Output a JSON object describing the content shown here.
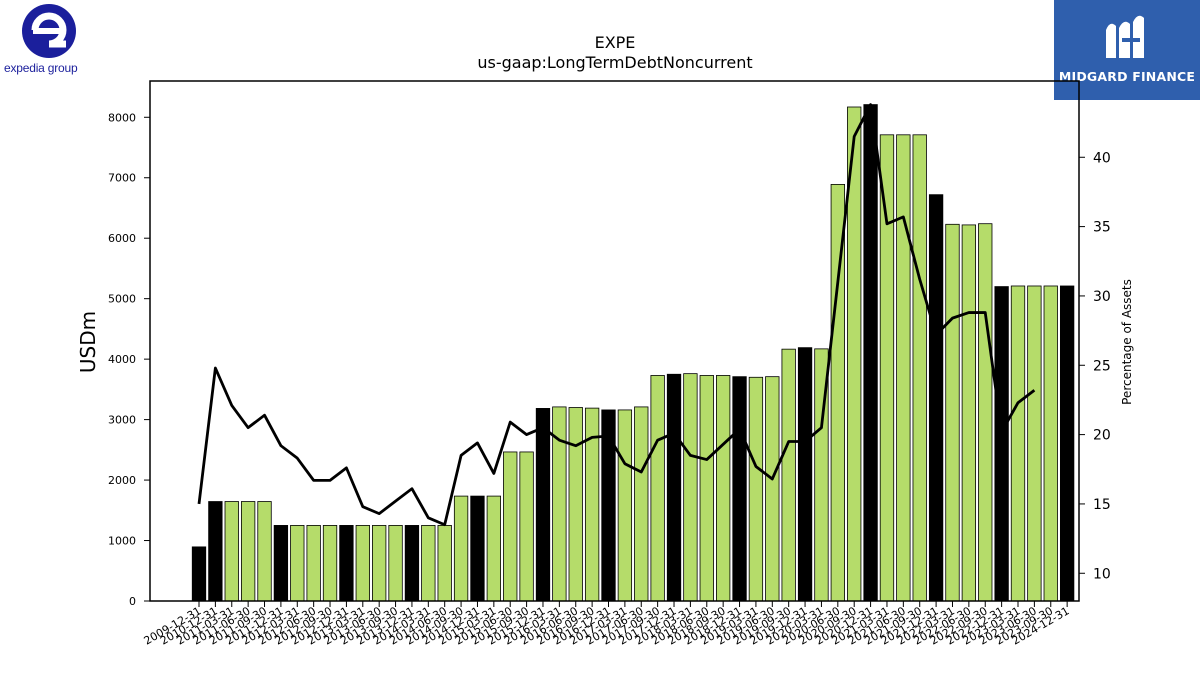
{
  "logos": {
    "left_text": "expedia group",
    "right_text": "MIDGARD FINANCE",
    "left_color": "#1b1f9c",
    "right_bg": "#2f5fad"
  },
  "chart_data": {
    "type": "bar",
    "title": "EXPE",
    "subtitle": "us-gaap:LongTermDebtNoncurrent",
    "ylabel": "USDm",
    "y2label": "Percentage of Assets",
    "ylim": [
      0,
      8600
    ],
    "y2lim": [
      8,
      45.5
    ],
    "yticks": [
      0,
      1000,
      2000,
      3000,
      4000,
      5000,
      6000,
      7000,
      8000
    ],
    "y2ticks": [
      10,
      15,
      20,
      25,
      30,
      35,
      40
    ],
    "colors": {
      "annual": "#000000",
      "quarterly": "#b5dc6a",
      "line": "#000000"
    },
    "categories": [
      "2009-12-31",
      "2010-12-31",
      "2011-03-31",
      "2011-06-30",
      "2011-09-30",
      "2011-12-31",
      "2012-03-31",
      "2012-06-30",
      "2012-09-30",
      "2012-12-31",
      "2013-03-31",
      "2013-06-30",
      "2013-09-30",
      "2013-12-31",
      "2014-03-31",
      "2014-06-30",
      "2014-09-30",
      "2014-12-31",
      "2015-03-31",
      "2015-06-30",
      "2015-09-30",
      "2015-12-31",
      "2016-03-31",
      "2016-06-30",
      "2016-09-30",
      "2016-12-31",
      "2017-03-31",
      "2017-06-30",
      "2017-09-30",
      "2017-12-31",
      "2018-03-31",
      "2018-06-30",
      "2018-09-30",
      "2018-12-31",
      "2019-03-31",
      "2019-06-30",
      "2019-09-30",
      "2019-12-31",
      "2020-03-31",
      "2020-06-30",
      "2020-09-30",
      "2020-12-31",
      "2021-03-31",
      "2021-06-30",
      "2021-09-30",
      "2021-12-31",
      "2022-03-31",
      "2022-06-30",
      "2022-09-30",
      "2022-12-31",
      "2023-03-31",
      "2023-06-30",
      "2023-09-30",
      "2024-12-31"
    ],
    "annual": [
      true,
      true,
      false,
      false,
      false,
      true,
      false,
      false,
      false,
      true,
      false,
      false,
      false,
      true,
      false,
      false,
      false,
      true,
      false,
      false,
      false,
      true,
      false,
      false,
      false,
      true,
      false,
      false,
      false,
      true,
      false,
      false,
      false,
      true,
      false,
      false,
      false,
      true,
      false,
      false,
      false,
      true,
      false,
      false,
      false,
      true,
      false,
      false,
      false,
      true,
      false,
      false,
      false,
      true
    ],
    "series": [
      {
        "name": "",
        "kind": "bar",
        "values": [
          895,
          1645,
          1645,
          1645,
          1645,
          1250,
          1250,
          1250,
          1250,
          1250,
          1250,
          1250,
          1250,
          1250,
          1250,
          1250,
          1735,
          1735,
          1735,
          2465,
          2465,
          3185,
          3210,
          3200,
          3190,
          3160,
          3160,
          3210,
          3730,
          3750,
          3760,
          3730,
          3730,
          3710,
          3700,
          3710,
          4165,
          4190,
          4170,
          6890,
          8170,
          8210,
          7710,
          7710,
          7710,
          6720,
          6230,
          6220,
          6240,
          5200,
          5210,
          5210,
          5210,
          5210
        ]
      },
      {
        "name": "",
        "kind": "line",
        "axis": "right",
        "values": [
          15.0,
          24.8,
          22.1,
          20.5,
          21.4,
          19.2,
          18.3,
          16.7,
          16.7,
          17.6,
          14.8,
          14.3,
          15.2,
          16.1,
          14.0,
          13.5,
          18.5,
          19.4,
          17.2,
          20.9,
          20.0,
          20.5,
          19.6,
          19.2,
          19.8,
          19.9,
          17.9,
          17.3,
          19.6,
          20.1,
          18.5,
          18.2,
          19.3,
          20.4,
          17.7,
          16.8,
          19.5,
          19.5,
          20.5,
          31.0,
          41.5,
          43.8,
          35.2,
          35.7,
          31.2,
          27.2,
          28.4,
          28.8,
          28.8,
          20.2,
          22.3,
          23.2,
          null,
          null
        ]
      }
    ]
  }
}
